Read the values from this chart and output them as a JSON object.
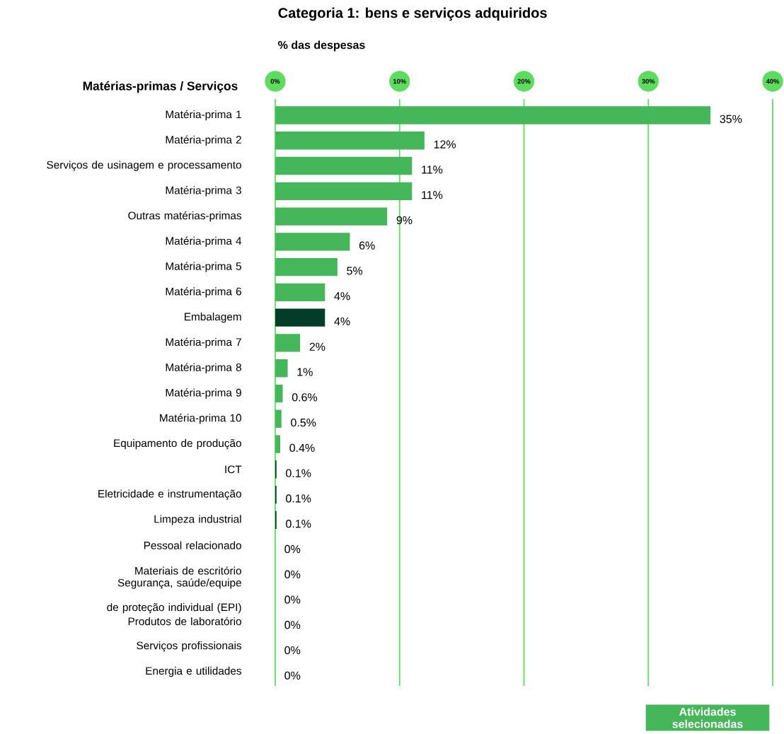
{
  "chart_data": {
    "type": "bar",
    "orientation": "horizontal",
    "title": "Categoria 1: bens e serviços adquiridos",
    "xlabel": "% das despesas",
    "ylabel": "Matérias-primas / Serviços",
    "categories": [
      "Matéria-prima 1",
      "Matéria-prima 2",
      "Serviços de usinagem e processamento",
      "Matéria-prima 3",
      "Outras matérias-primas",
      "Matéria-prima 4",
      "Matéria-prima 5",
      "Matéria-prima 6",
      "Embalagem",
      "Matéria-prima 7",
      "Matéria-prima 8",
      "Matéria-prima 9",
      "Matéria-prima 10",
      "Equipamento de produção",
      "ICT",
      "Eletricidade e instrumentação",
      "Limpeza industrial",
      "Pessoal relacionado",
      "Materiais de escritório",
      "Segurança, saúde/equipe de proteção individual (EPI)",
      "Produtos de laboratório",
      "Serviços profissionais",
      "Energia e utilidades"
    ],
    "series": [
      {
        "name": "Atividades selecionadas",
        "color": "#46b65a",
        "values": [
          35,
          12,
          11,
          11,
          9,
          6,
          5,
          4,
          4,
          2,
          1,
          0.6,
          0.5,
          0.4,
          0.1,
          0.1,
          0.1,
          0,
          0,
          0,
          0,
          0,
          0
        ],
        "colors": [
          "#46b65a",
          "#46b65a",
          "#46b65a",
          "#46b65a",
          "#46b65a",
          "#46b65a",
          "#46b65a",
          "#46b65a",
          "#013d28",
          "#46b65a",
          "#46b65a",
          "#46b65a",
          "#46b65a",
          "#46b65a",
          "#013d28",
          "#013d28",
          "#013d28",
          "#46b65a",
          "#46b65a",
          "#46b65a",
          "#46b65a",
          "#46b65a",
          "#46b65a"
        ],
        "value_labels": [
          "35%",
          "12%",
          "11%",
          "11%",
          "9%",
          "6%",
          "5%",
          "4%",
          "4%",
          "2%",
          "1%",
          "0.6%",
          "0.5%",
          "0.4%",
          "0.1%",
          "0.1%",
          "0.1%",
          "0%",
          "0%",
          "0%",
          "0%",
          "0%",
          "0%"
        ]
      }
    ],
    "xlim": [
      0,
      40
    ],
    "xticks": [
      {
        "value": 0,
        "label": "0%"
      },
      {
        "value": 10,
        "label": "10%"
      },
      {
        "value": 20,
        "label": "20%"
      },
      {
        "value": 30,
        "label": "30%"
      },
      {
        "value": 40,
        "label": "40%"
      }
    ],
    "grid": "x",
    "legend": "bottom right"
  }
}
